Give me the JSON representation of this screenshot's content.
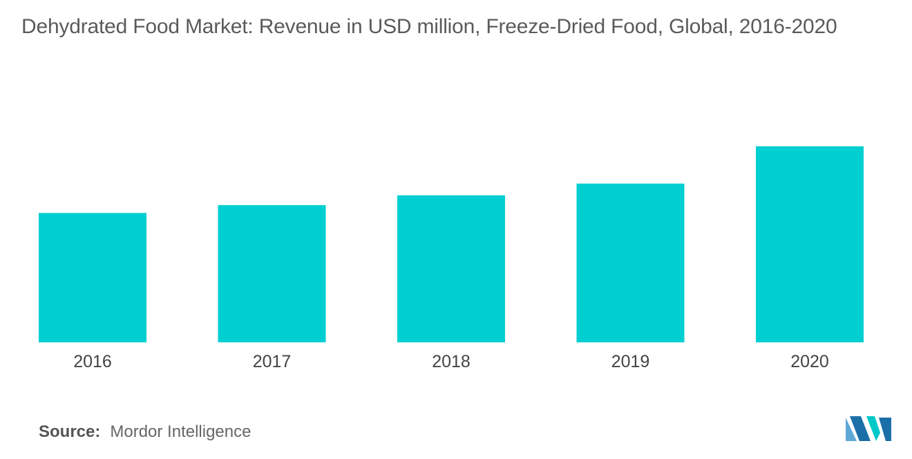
{
  "title": "Dehydrated Food Market: Revenue in USD million, Freeze-Dried Food, Global, 2016-2020",
  "source": {
    "label": "Source:",
    "value": "Mordor Intelligence"
  },
  "logo": {
    "icon": "mordor-intelligence-logo-icon",
    "colors": [
      "#5ea8d8",
      "#1a6fa8",
      "#00c8c8"
    ]
  },
  "colors": {
    "bar": "#00cfd1",
    "title": "#5a5a5a",
    "axis_text": "#444444"
  },
  "chart_data": {
    "type": "bar",
    "title": "Dehydrated Food Market: Revenue in USD million, Freeze-Dried Food, Global, 2016-2020",
    "categories": [
      "2016",
      "2017",
      "2018",
      "2019",
      "2020"
    ],
    "values": [
      66,
      70,
      75,
      81,
      100
    ],
    "ylim": [
      0,
      100
    ],
    "xlabel": "",
    "ylabel": "",
    "grid": false,
    "legend": "none",
    "y_axis_visible": false
  }
}
